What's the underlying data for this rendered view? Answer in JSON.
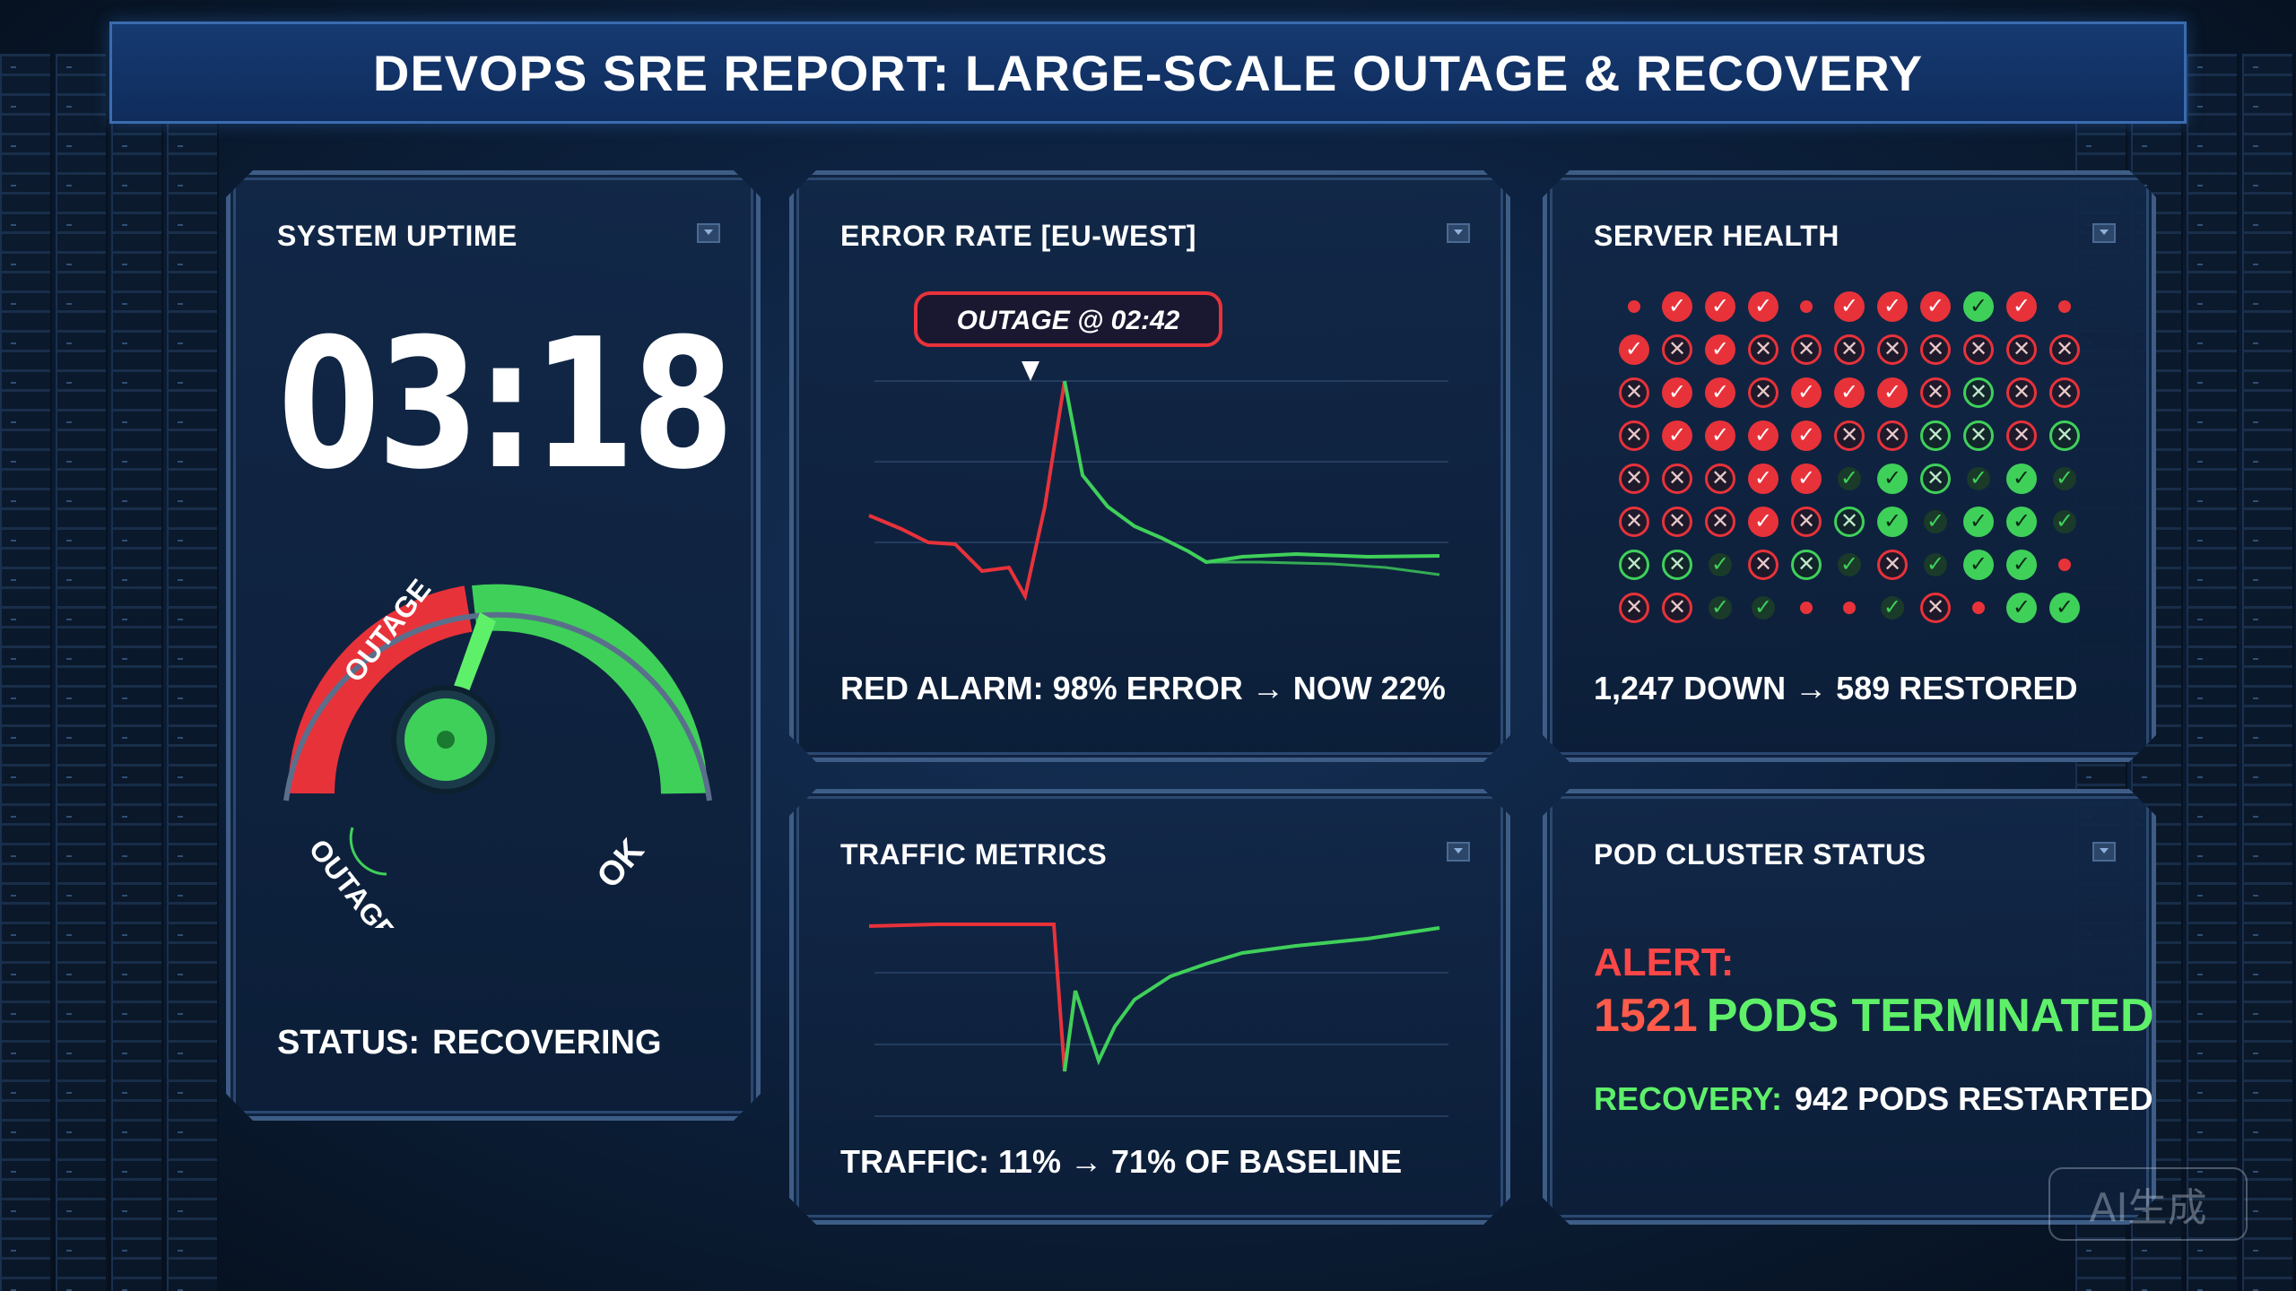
{
  "title": "DEVOPS SRE REPORT: LARGE-SCALE OUTAGE & RECOVERY",
  "uptime": {
    "title": "SYSTEM UPTIME",
    "time": "03:18",
    "gauge_label_top": "OUTAGE",
    "gauge_label_left": "OUTAGE",
    "gauge_label_right": "OK",
    "status_label": "STATUS:",
    "status_value": "RECOVERING",
    "gauge_level": 0.62,
    "colors": {
      "outage": "#e8323a",
      "ok": "#3fd05a"
    }
  },
  "error_rate": {
    "title": "ERROR RATE [EU-WEST]",
    "callout": "OUTAGE @ 02:42",
    "caption": "RED ALARM: 98% ERROR → NOW 22%"
  },
  "server_health": {
    "title": "SERVER HEALTH",
    "caption": "1,247 DOWN → 589 RESTORED",
    "grid": [
      [
        "s",
        "r",
        "r",
        "r",
        "s",
        "r",
        "r",
        "r",
        "g",
        "r",
        "s"
      ],
      [
        "r",
        "x",
        "r",
        "x",
        "x",
        "x",
        "x",
        "x",
        "x",
        "x",
        "x"
      ],
      [
        "x",
        "r",
        "r",
        "x",
        "r",
        "r",
        "r",
        "x",
        "X",
        "x",
        "x"
      ],
      [
        "x",
        "r",
        "r",
        "r",
        "r",
        "x",
        "x",
        "X",
        "X",
        "x",
        "X"
      ],
      [
        "x",
        "x",
        "x",
        "r",
        "r",
        "d",
        "g",
        "X",
        "d",
        "g",
        "d"
      ],
      [
        "x",
        "x",
        "x",
        "r",
        "x",
        "X",
        "g",
        "d",
        "g",
        "g",
        "d"
      ],
      [
        "X",
        "X",
        "d",
        "x",
        "X",
        "d",
        "x",
        "d",
        "g",
        "g",
        "s"
      ],
      [
        "x",
        "x",
        "d",
        "d",
        "s",
        "s",
        "d",
        "x",
        "s",
        "g",
        "g"
      ]
    ]
  },
  "traffic": {
    "title": "TRAFFIC METRICS",
    "caption": "TRAFFIC: 11% → 71% OF BASELINE"
  },
  "pods": {
    "title": "POD CLUSTER STATUS",
    "alert_label": "ALERT:",
    "alert_count": "1521",
    "alert_text": "PODS TERMINATED",
    "recovery_label": "RECOVERY:",
    "recovery_value": "942 PODS RESTARTED"
  },
  "watermark": "AI生成"
}
